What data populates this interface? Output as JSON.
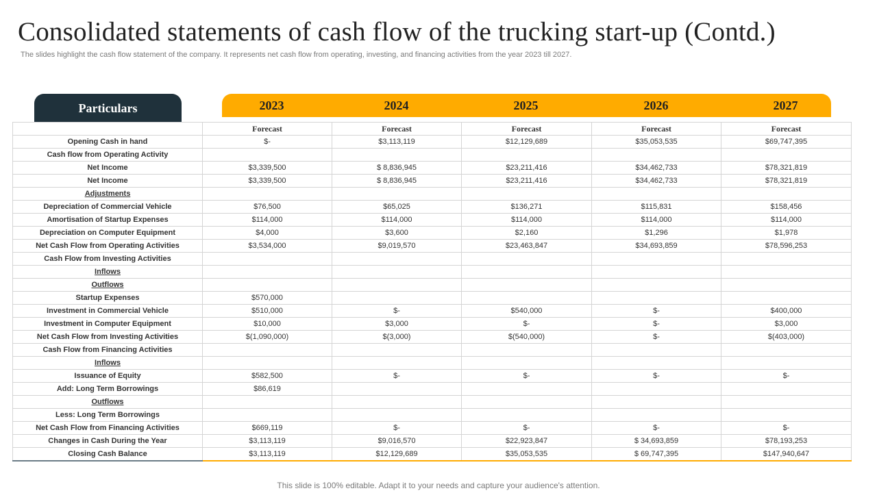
{
  "title": "Consolidated statements of cash flow of the trucking start-up (Contd.)",
  "subtitle": "The slides highlight the cash flow statement of the company. It represents net cash flow from operating, investing, and financing activities from the year 2023 till 2027.",
  "particulars_label": "Particulars",
  "years": [
    "2023",
    "2024",
    "2025",
    "2026",
    "2027"
  ],
  "forecast_label": "Forecast",
  "rows": [
    {
      "label": "Opening Cash in hand",
      "values": [
        "$-",
        "$3,113,119",
        "$12,129,689",
        "$35,053,535",
        "$69,747,395"
      ]
    },
    {
      "label": "Cash flow from Operating Activity",
      "values": [
        "",
        "",
        "",
        "",
        ""
      ]
    },
    {
      "label": "Net Income",
      "values": [
        "$3,339,500",
        "$ 8,836,945",
        "$23,211,416",
        "$34,462,733",
        "$78,321,819"
      ]
    },
    {
      "label": "Net Income",
      "values": [
        "$3,339,500",
        "$ 8,836,945",
        "$23,211,416",
        "$34,462,733",
        "$78,321,819"
      ]
    },
    {
      "label": "Adjustments",
      "underline": true,
      "values": [
        "",
        "",
        "",
        "",
        ""
      ]
    },
    {
      "label": "Depreciation of Commercial Vehicle",
      "values": [
        "$76,500",
        "$65,025",
        "$136,271",
        "$115,831",
        "$158,456"
      ]
    },
    {
      "label": "Amortisation of Startup Expenses",
      "values": [
        "$114,000",
        "$114,000",
        "$114,000",
        "$114,000",
        "$114,000"
      ]
    },
    {
      "label": "Depreciation on Computer Equipment",
      "values": [
        "$4,000",
        "$3,600",
        "$2,160",
        "$1,296",
        "$1,978"
      ]
    },
    {
      "label": "Net Cash Flow from Operating Activities",
      "values": [
        "$3,534,000",
        "$9,019,570",
        "$23,463,847",
        "$34,693,859",
        "$78,596,253"
      ]
    },
    {
      "label": "Cash Flow from Investing Activities",
      "values": [
        "",
        "",
        "",
        "",
        ""
      ]
    },
    {
      "label": "Inflows",
      "underline": true,
      "values": [
        "",
        "",
        "",
        "",
        ""
      ]
    },
    {
      "label": "Outflows",
      "underline": true,
      "values": [
        "",
        "",
        "",
        "",
        ""
      ]
    },
    {
      "label": "Startup Expenses",
      "values": [
        "$570,000",
        "",
        "",
        "",
        ""
      ]
    },
    {
      "label": "Investment in Commercial Vehicle",
      "values": [
        "$510,000",
        "$-",
        "$540,000",
        "$-",
        "$400,000"
      ]
    },
    {
      "label": "Investment in Computer Equipment",
      "values": [
        "$10,000",
        "$3,000",
        "$-",
        "$-",
        "$3,000"
      ]
    },
    {
      "label": "Net Cash Flow from Investing Activities",
      "values": [
        "$(1,090,000)",
        "$(3,000)",
        "$(540,000)",
        "$-",
        "$(403,000)"
      ]
    },
    {
      "label": "Cash Flow from Financing Activities",
      "values": [
        "",
        "",
        "",
        "",
        ""
      ]
    },
    {
      "label": "Inflows",
      "underline": true,
      "values": [
        "",
        "",
        "",
        "",
        ""
      ]
    },
    {
      "label": "Issuance of Equity",
      "values": [
        "$582,500",
        "$-",
        "$-",
        "$-",
        "$-"
      ]
    },
    {
      "label": "Add: Long Term Borrowings",
      "values": [
        "$86,619",
        "",
        "",
        "",
        ""
      ]
    },
    {
      "label": "Outflows",
      "underline": true,
      "values": [
        "",
        "",
        "",
        "",
        ""
      ]
    },
    {
      "label": "Less: Long Term Borrowings",
      "values": [
        "",
        "",
        "",
        "",
        ""
      ]
    },
    {
      "label": "Net Cash Flow from Financing Activities",
      "values": [
        "$669,119",
        "$-",
        "$-",
        "$-",
        "$-"
      ]
    },
    {
      "label": "Changes in Cash During the Year",
      "values": [
        "$3,113,119",
        "$9,016,570",
        "$22,923,847",
        "$ 34,693,859",
        "$78,193,253"
      ]
    },
    {
      "label": "Closing Cash Balance",
      "values": [
        "$3,113,119",
        "$12,129,689",
        "$35,053,535",
        "$ 69,747,395",
        "$147,940,647"
      ]
    }
  ],
  "footer": "This slide is 100% editable. Adapt it to your needs and capture your audience's attention.",
  "colors": {
    "accent": "#ffab00",
    "header_dark": "#1f313b"
  }
}
